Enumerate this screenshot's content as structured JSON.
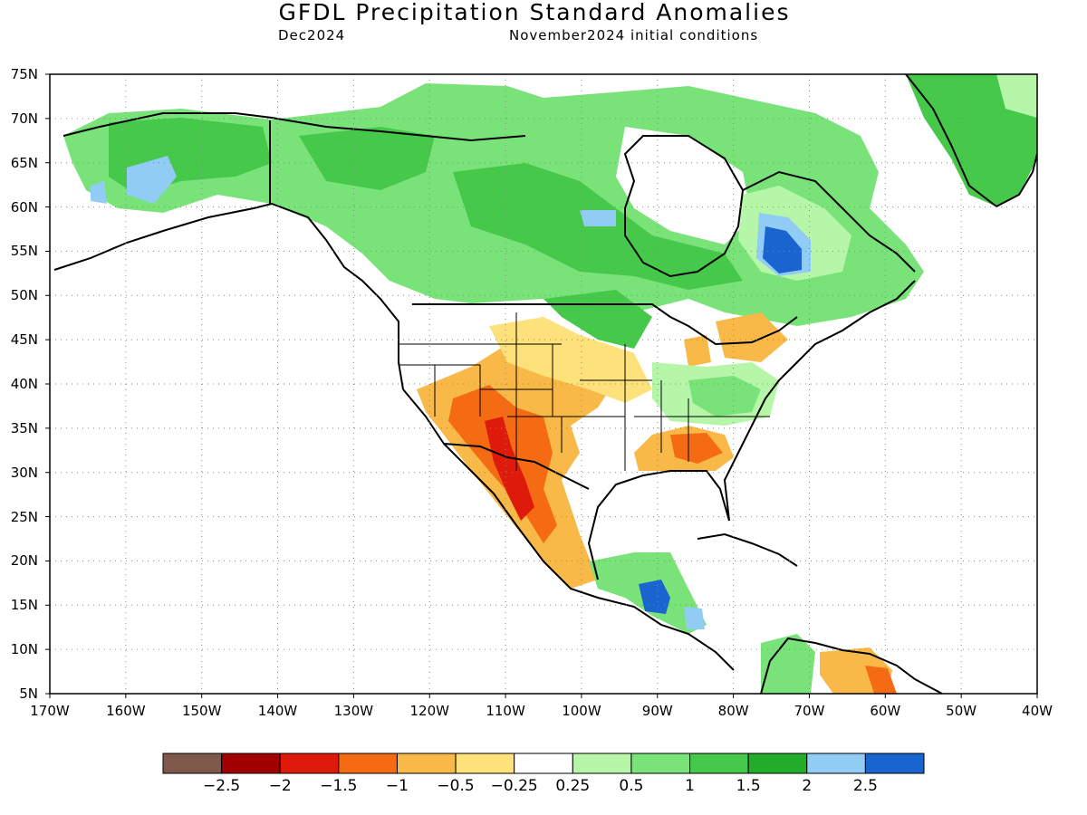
{
  "header": {
    "title": "GFDL Precipitation Standard Anomalies",
    "valid_month": "Dec2024",
    "initial_conditions": "November2024 initial conditions"
  },
  "map": {
    "projection": "lat-lon",
    "lat_range": [
      5,
      75
    ],
    "lon_range": [
      -170,
      -40
    ],
    "lat_labels": [
      "75N",
      "70N",
      "65N",
      "60N",
      "55N",
      "50N",
      "45N",
      "40N",
      "35N",
      "30N",
      "25N",
      "20N",
      "15N",
      "10N",
      "5N"
    ],
    "lon_labels": [
      "170W",
      "160W",
      "150W",
      "140W",
      "130W",
      "120W",
      "110W",
      "100W",
      "90W",
      "80W",
      "70W",
      "60W",
      "50W",
      "40W"
    ],
    "gridlines": "dotted"
  },
  "colorbar": {
    "colors": [
      "#7f5a4c",
      "#a00000",
      "#de1a0a",
      "#f56b13",
      "#f8b948",
      "#fde27b",
      "#ffffff",
      "#b5f6a8",
      "#79e37a",
      "#46c84a",
      "#22ac2a",
      "#91ccf5",
      "#1a64d0"
    ],
    "labels": [
      "-2.5",
      "-2",
      "-1.5",
      "-1",
      "-0.5",
      "-0.25",
      "0.25",
      "0.5",
      "1",
      "1.5",
      "2",
      "2.5"
    ]
  }
}
